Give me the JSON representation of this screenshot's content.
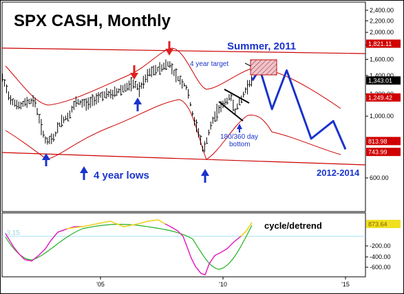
{
  "title": "SPX CASH, Monthly",
  "annotations": {
    "summer": "Summer, 2011",
    "target": "4 year target",
    "bottom_line1": "180/360 day",
    "bottom_line2": "bottom",
    "lows": "4 year lows",
    "range": "2012-2014",
    "cycle": "cycle/detrend"
  },
  "colors": {
    "price_bar": "#000000",
    "channel": "#cc0000",
    "projection": "#1a33cc",
    "arrow_up": "#1a33cc",
    "arrow_down": "#e02020",
    "target_box": "#d03030",
    "osc_green": "#22b022",
    "osc_yellow": "#f0e020",
    "osc_magenta": "#e020c0",
    "osc_red": "#e04040",
    "zero_line": "#a0e0f0",
    "axis_tag": "#d00000",
    "last_price_tag": "#000000",
    "osc_tag": "#f0e020"
  },
  "chart_data": [
    {
      "type": "line",
      "title": "SPX CASH, Monthly",
      "y_scale": "log",
      "x_ticks": [
        "'05",
        "'10",
        "'15"
      ],
      "y_ticks": [
        "2,400.00",
        "2,200.00",
        "2,000.00",
        "1,800.00",
        "1,600.00",
        "1,400.00",
        "1,200.00",
        "1,000.00",
        "600.00"
      ],
      "value_tags": [
        {
          "label": "1,821.11",
          "style": "red"
        },
        {
          "label": "1,343.01",
          "style": "black"
        },
        {
          "label": "1,249.42",
          "style": "red"
        },
        {
          "label": "813.98",
          "style": "red"
        },
        {
          "label": "743.99",
          "style": "red"
        }
      ],
      "price_path": [
        [
          2001.0,
          1366
        ],
        [
          2001.3,
          1160
        ],
        [
          2001.7,
          1080
        ],
        [
          2002.0,
          1130
        ],
        [
          2002.3,
          1140
        ],
        [
          2002.6,
          900
        ],
        [
          2002.8,
          800
        ],
        [
          2003.1,
          840
        ],
        [
          2003.4,
          960
        ],
        [
          2003.7,
          1000
        ],
        [
          2004.0,
          1120
        ],
        [
          2004.5,
          1110
        ],
        [
          2005.0,
          1190
        ],
        [
          2005.5,
          1200
        ],
        [
          2006.0,
          1270
        ],
        [
          2006.4,
          1300
        ],
        [
          2006.6,
          1250
        ],
        [
          2007.0,
          1430
        ],
        [
          2007.4,
          1480
        ],
        [
          2007.8,
          1550
        ],
        [
          2008.1,
          1390
        ],
        [
          2008.5,
          1270
        ],
        [
          2008.8,
          970
        ],
        [
          2009.0,
          880
        ],
        [
          2009.2,
          740
        ],
        [
          2009.5,
          920
        ],
        [
          2009.8,
          1060
        ],
        [
          2010.1,
          1120
        ],
        [
          2010.3,
          1180
        ],
        [
          2010.5,
          1050
        ],
        [
          2010.8,
          1170
        ],
        [
          2011.0,
          1290
        ],
        [
          2011.2,
          1343
        ]
      ],
      "projection_path": [
        [
          2011.2,
          1343
        ],
        [
          2011.5,
          1480
        ],
        [
          2012.0,
          1060
        ],
        [
          2012.6,
          1460
        ],
        [
          2013.6,
          830
        ],
        [
          2014.5,
          960
        ],
        [
          2015.0,
          760
        ]
      ]
    },
    {
      "type": "line",
      "title": "cycle/detrend",
      "y_ticks": [
        "-200.00",
        "-400.00",
        "-600.00"
      ],
      "zero_line_label": "-3.15",
      "value_tag": "873.64"
    }
  ]
}
